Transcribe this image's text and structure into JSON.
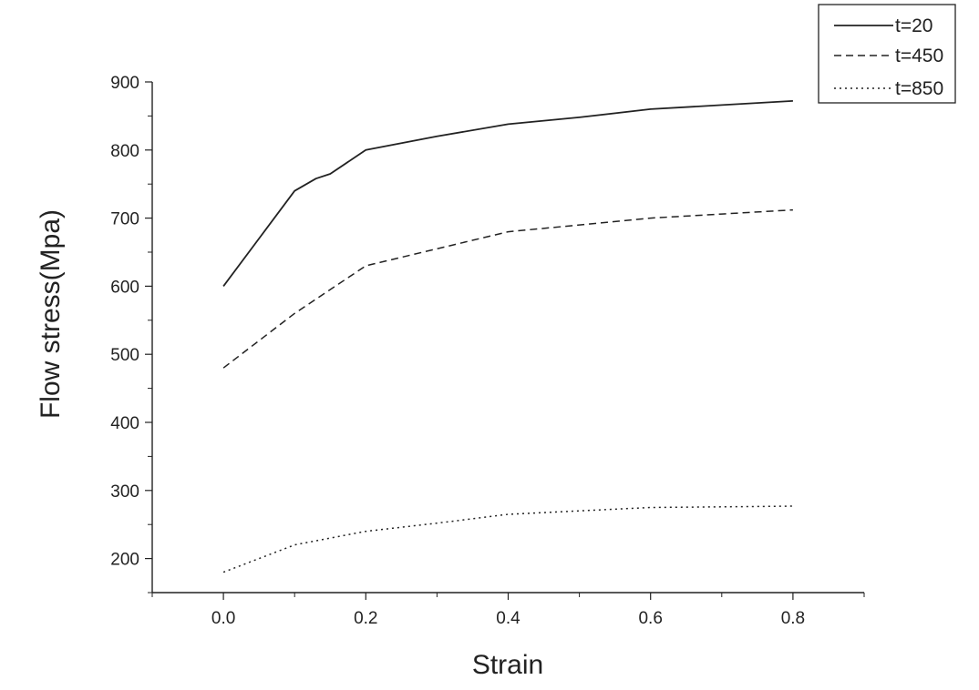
{
  "chart_data": {
    "type": "line",
    "title": "",
    "xlabel": "Strain",
    "ylabel": "Flow stress(Mpa)",
    "xlim": [
      -0.1,
      0.9
    ],
    "ylim": [
      150,
      900
    ],
    "x_ticks": [
      "0.0",
      "0.2",
      "0.4",
      "0.6",
      "0.8"
    ],
    "y_ticks": [
      "200",
      "300",
      "400",
      "500",
      "600",
      "700",
      "800",
      "900"
    ],
    "legend_position": "top-right",
    "grid": false,
    "series": [
      {
        "name": "t=20",
        "style": "solid",
        "x": [
          0.0,
          0.05,
          0.1,
          0.13,
          0.15,
          0.2,
          0.3,
          0.4,
          0.5,
          0.6,
          0.7,
          0.8
        ],
        "y": [
          600,
          670,
          740,
          758,
          765,
          800,
          820,
          838,
          848,
          860,
          866,
          872
        ]
      },
      {
        "name": "t=450",
        "style": "dashed",
        "x": [
          0.0,
          0.1,
          0.2,
          0.3,
          0.4,
          0.5,
          0.6,
          0.7,
          0.8
        ],
        "y": [
          480,
          560,
          630,
          655,
          680,
          690,
          700,
          706,
          712
        ]
      },
      {
        "name": "t=850",
        "style": "dotted",
        "x": [
          0.0,
          0.1,
          0.2,
          0.3,
          0.4,
          0.5,
          0.6,
          0.7,
          0.8
        ],
        "y": [
          180,
          220,
          240,
          252,
          265,
          270,
          275,
          276,
          277
        ]
      }
    ]
  }
}
